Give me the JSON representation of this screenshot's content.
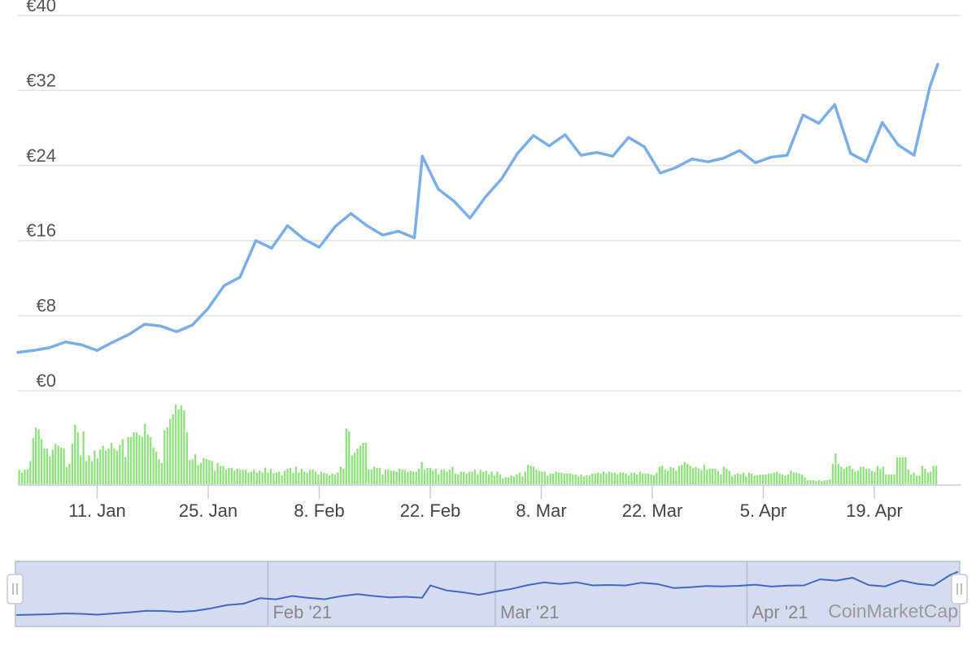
{
  "colors": {
    "price_line": "#7aaee6",
    "volume_bar": "#90e27f",
    "grid": "#e2e2e2",
    "navigator_fill": "#d6dcef",
    "navigator_line": "#3f69c4",
    "navigator_border": "#b6bcd2"
  },
  "chart_data": {
    "type": "line",
    "title": "",
    "ylabel": "",
    "xlabel": "",
    "ylim": [
      0,
      40
    ],
    "y_ticks": [
      "€0",
      "€8",
      "€16",
      "€24",
      "€32",
      "€40"
    ],
    "x_tick_labels": [
      "11. Jan",
      "25. Jan",
      "8. Feb",
      "22. Feb",
      "8. Mar",
      "22. Mar",
      "5. Apr",
      "19. Apr"
    ],
    "x_tick_dates": [
      "2021-01-11",
      "2021-01-25",
      "2021-02-08",
      "2021-02-22",
      "2021-03-08",
      "2021-03-22",
      "2021-04-05",
      "2021-04-19"
    ],
    "grid": true,
    "legend": "none",
    "price_series": {
      "x": [
        "2021-01-01",
        "2021-01-03",
        "2021-01-05",
        "2021-01-07",
        "2021-01-09",
        "2021-01-11",
        "2021-01-13",
        "2021-01-15",
        "2021-01-17",
        "2021-01-19",
        "2021-01-21",
        "2021-01-23",
        "2021-01-25",
        "2021-01-27",
        "2021-01-29",
        "2021-01-31",
        "2021-02-02",
        "2021-02-04",
        "2021-02-06",
        "2021-02-08",
        "2021-02-10",
        "2021-02-12",
        "2021-02-14",
        "2021-02-16",
        "2021-02-18",
        "2021-02-20",
        "2021-02-21",
        "2021-02-23",
        "2021-02-25",
        "2021-02-27",
        "2021-03-01",
        "2021-03-03",
        "2021-03-05",
        "2021-03-07",
        "2021-03-09",
        "2021-03-11",
        "2021-03-13",
        "2021-03-15",
        "2021-03-17",
        "2021-03-19",
        "2021-03-21",
        "2021-03-23",
        "2021-03-25",
        "2021-03-27",
        "2021-03-29",
        "2021-03-31",
        "2021-04-02",
        "2021-04-04",
        "2021-04-06",
        "2021-04-08",
        "2021-04-10",
        "2021-04-12",
        "2021-04-14",
        "2021-04-16",
        "2021-04-18",
        "2021-04-20",
        "2021-04-22",
        "2021-04-24",
        "2021-04-26",
        "2021-04-27"
      ],
      "y": [
        4.1,
        4.3,
        4.6,
        5.2,
        4.9,
        4.3,
        5.2,
        6.0,
        7.1,
        6.9,
        6.3,
        7.0,
        8.8,
        11.2,
        12.1,
        16.0,
        15.2,
        17.6,
        16.2,
        15.3,
        17.5,
        18.9,
        17.6,
        16.6,
        17.0,
        16.3,
        25.0,
        21.5,
        20.2,
        18.4,
        20.7,
        22.6,
        25.3,
        27.2,
        26.1,
        27.3,
        25.1,
        25.4,
        25.0,
        27.0,
        26.0,
        23.2,
        23.8,
        24.7,
        24.4,
        24.8,
        25.6,
        24.3,
        24.9,
        25.1,
        29.4,
        28.5,
        30.5,
        25.3,
        24.4,
        28.6,
        26.2,
        25.1,
        32.4,
        34.8
      ]
    },
    "volume_series": {
      "note_units": "relative",
      "x_range": [
        "2021-01-01",
        "2021-04-27"
      ],
      "values": [
        0.16,
        0.13,
        0.16,
        0.16,
        0.25,
        0.49,
        0.6,
        0.58,
        0.48,
        0.38,
        0.38,
        0.3,
        0.37,
        0.43,
        0.41,
        0.39,
        0.38,
        0.19,
        0.22,
        0.43,
        0.63,
        0.55,
        0.31,
        0.56,
        0.25,
        0.31,
        0.25,
        0.36,
        0.28,
        0.37,
        0.41,
        0.36,
        0.38,
        0.44,
        0.38,
        0.36,
        0.42,
        0.48,
        0.29,
        0.5,
        0.5,
        0.55,
        0.55,
        0.52,
        0.5,
        0.64,
        0.53,
        0.5,
        0.39,
        0.35,
        0.27,
        0.23,
        0.57,
        0.6,
        0.69,
        0.74,
        0.84,
        0.79,
        0.83,
        0.78,
        0.55,
        0.26,
        0.27,
        0.32,
        0.21,
        0.23,
        0.28,
        0.27,
        0.26,
        0.25,
        0.15,
        0.23,
        0.2,
        0.2,
        0.16,
        0.18,
        0.18,
        0.15,
        0.17,
        0.16,
        0.16,
        0.16,
        0.13,
        0.14,
        0.16,
        0.13,
        0.15,
        0.13,
        0.18,
        0.13,
        0.17,
        0.12,
        0.13,
        0.14,
        0.1,
        0.15,
        0.17,
        0.18,
        0.13,
        0.19,
        0.13,
        0.17,
        0.14,
        0.13,
        0.16,
        0.16,
        0.14,
        0.11,
        0.14,
        0.13,
        0.12,
        0.1,
        0.12,
        0.11,
        0.13,
        0.19,
        0.17,
        0.59,
        0.56,
        0.31,
        0.34,
        0.38,
        0.41,
        0.44,
        0.44,
        0.16,
        0.16,
        0.19,
        0.18,
        0.18,
        0.11,
        0.16,
        0.16,
        0.15,
        0.15,
        0.14,
        0.17,
        0.16,
        0.16,
        0.14,
        0.15,
        0.14,
        0.14,
        0.17,
        0.24,
        0.16,
        0.18,
        0.18,
        0.15,
        0.17,
        0.11,
        0.16,
        0.16,
        0.14,
        0.16,
        0.19,
        0.12,
        0.11,
        0.14,
        0.14,
        0.12,
        0.14,
        0.14,
        0.16,
        0.11,
        0.16,
        0.14,
        0.15,
        0.11,
        0.14,
        0.1,
        0.14,
        0.11,
        0.07,
        0.08,
        0.08,
        0.1,
        0.09,
        0.11,
        0.13,
        0.09,
        0.14,
        0.21,
        0.2,
        0.19,
        0.16,
        0.15,
        0.14,
        0.14,
        0.1,
        0.12,
        0.12,
        0.14,
        0.13,
        0.13,
        0.12,
        0.12,
        0.12,
        0.11,
        0.11,
        0.09,
        0.11,
        0.09,
        0.1,
        0.1,
        0.12,
        0.12,
        0.13,
        0.12,
        0.14,
        0.12,
        0.14,
        0.13,
        0.13,
        0.11,
        0.13,
        0.13,
        0.12,
        0.1,
        0.13,
        0.13,
        0.11,
        0.14,
        0.12,
        0.12,
        0.12,
        0.11,
        0.1,
        0.13,
        0.19,
        0.2,
        0.16,
        0.15,
        0.19,
        0.18,
        0.15,
        0.2,
        0.21,
        0.24,
        0.22,
        0.2,
        0.18,
        0.19,
        0.17,
        0.16,
        0.21,
        0.16,
        0.17,
        0.17,
        0.17,
        0.15,
        0.11,
        0.19,
        0.17,
        0.15,
        0.09,
        0.11,
        0.12,
        0.11,
        0.13,
        0.09,
        0.13,
        0.12,
        0.1,
        0.1,
        0.11,
        0.11,
        0.11,
        0.12,
        0.12,
        0.13,
        0.14,
        0.12,
        0.11,
        0.1,
        0.11,
        0.15,
        0.13,
        0.13,
        0.12,
        0.11,
        0.08,
        0.05,
        0.05,
        0.05,
        0.04,
        0.05,
        0.04,
        0.05,
        0.05,
        0.06,
        0.22,
        0.33,
        0.22,
        0.19,
        0.17,
        0.19,
        0.2,
        0.17,
        0.14,
        0.15,
        0.19,
        0.19,
        0.17,
        0.17,
        0.15,
        0.14,
        0.2,
        0.17,
        0.19,
        0.11,
        0.11,
        0.11,
        0.11,
        0.29,
        0.29,
        0.29,
        0.29,
        0.16,
        0.11,
        0.13,
        0.1,
        0.1,
        0.2,
        0.17,
        0.13,
        0.14,
        0.2,
        0.2
      ]
    }
  },
  "navigator": {
    "labels": [
      "Feb '21",
      "Mar '21",
      "Apr '21"
    ],
    "label_dates": [
      "2021-02-01",
      "2021-03-01",
      "2021-04-01"
    ],
    "handle_left": "grip-handle-icon",
    "handle_right": "grip-handle-icon"
  },
  "credit": "CoinMarketCap"
}
